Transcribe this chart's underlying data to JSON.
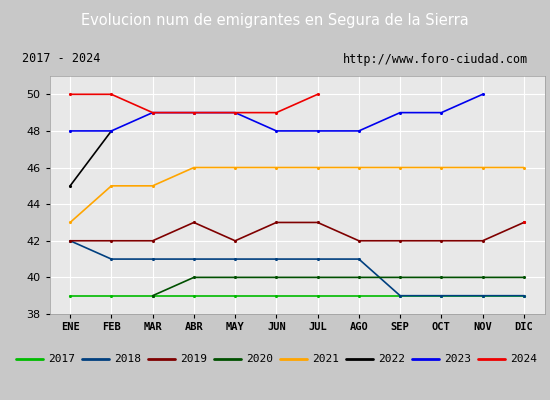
{
  "title": "Evolucion num de emigrantes en Segura de la Sierra",
  "subtitle_left": "2017 - 2024",
  "subtitle_right": "http://www.foro-ciudad.com",
  "months": [
    "ENE",
    "FEB",
    "MAR",
    "ABR",
    "MAY",
    "JUN",
    "JUL",
    "AGO",
    "SEP",
    "OCT",
    "NOV",
    "DIC"
  ],
  "ylim": [
    38,
    51
  ],
  "yticks": [
    38,
    40,
    42,
    44,
    46,
    48,
    50
  ],
  "series": {
    "2017": {
      "color": "#00bb00",
      "data": [
        39,
        39,
        39,
        39,
        39,
        39,
        39,
        39,
        39,
        39,
        39,
        39
      ]
    },
    "2018": {
      "color": "#003f7f",
      "data": [
        42,
        41,
        41,
        41,
        41,
        41,
        41,
        41,
        39,
        39,
        39,
        39
      ]
    },
    "2019": {
      "color": "#7f0000",
      "data": [
        42,
        42,
        42,
        43,
        42,
        43,
        43,
        42,
        42,
        42,
        42,
        43
      ]
    },
    "2020": {
      "color": "#005000",
      "data": [
        null,
        null,
        39,
        40,
        40,
        40,
        40,
        40,
        40,
        40,
        40,
        40
      ]
    },
    "2021": {
      "color": "#ffa500",
      "data": [
        43,
        45,
        45,
        46,
        46,
        46,
        46,
        46,
        46,
        46,
        46,
        46
      ]
    },
    "2022": {
      "color": "#000000",
      "data": [
        45,
        48,
        null,
        null,
        null,
        null,
        null,
        null,
        null,
        null,
        null,
        null
      ]
    },
    "2023": {
      "color": "#0000ee",
      "data": [
        48,
        48,
        49,
        49,
        49,
        48,
        48,
        48,
        49,
        49,
        50,
        null
      ]
    },
    "2024": {
      "color": "#ee0000",
      "data": [
        50,
        50,
        49,
        49,
        49,
        49,
        50,
        null,
        null,
        null,
        null,
        43
      ]
    }
  },
  "title_bg_color": "#4f8fce",
  "title_text_color": "#ffffff",
  "plot_bg_color": "#e8e8e8",
  "outer_bg_color": "#c8c8c8",
  "grid_color": "#ffffff",
  "subtitle_box_color": "#ffffff",
  "legend_bg_color": "#ffffff"
}
